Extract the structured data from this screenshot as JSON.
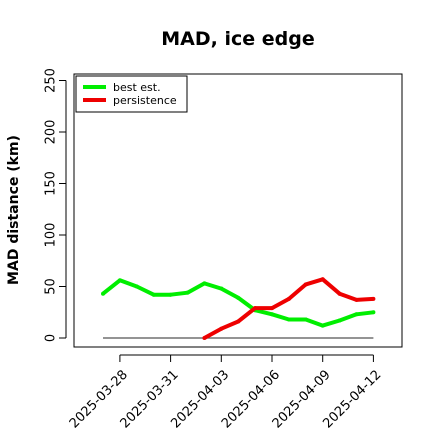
{
  "chart_data": {
    "type": "line",
    "title": "MAD, ice edge",
    "xlabel": "",
    "ylabel": "MAD distance (km)",
    "ylim": [
      0,
      260
    ],
    "y_ticks": [
      0,
      50,
      100,
      150,
      200,
      250
    ],
    "x": [
      "2025-03-27",
      "2025-03-28",
      "2025-03-29",
      "2025-03-30",
      "2025-03-31",
      "2025-04-01",
      "2025-04-02",
      "2025-04-03",
      "2025-04-04",
      "2025-04-05",
      "2025-04-06",
      "2025-04-07",
      "2025-04-08",
      "2025-04-09",
      "2025-04-10",
      "2025-04-11",
      "2025-04-12"
    ],
    "x_ticks": [
      "2025-03-28",
      "2025-03-31",
      "2025-04-03",
      "2025-04-06",
      "2025-04-09",
      "2025-04-12"
    ],
    "series": [
      {
        "name": "best est.",
        "color": "#00ee00",
        "values": [
          43,
          56,
          50,
          42,
          42,
          44,
          53,
          48,
          39,
          27,
          23,
          18,
          18,
          12,
          17,
          23,
          25
        ]
      },
      {
        "name": "persistence",
        "color": "#ee0000",
        "values": [
          null,
          null,
          null,
          null,
          null,
          null,
          0,
          9,
          16,
          29,
          29,
          38,
          52,
          57,
          43,
          37,
          38
        ]
      }
    ],
    "reference_line": {
      "value": 0,
      "color": "#555555"
    },
    "legend": {
      "position": "top-left",
      "entries": [
        "best est.",
        "persistence"
      ]
    },
    "grid": false
  }
}
